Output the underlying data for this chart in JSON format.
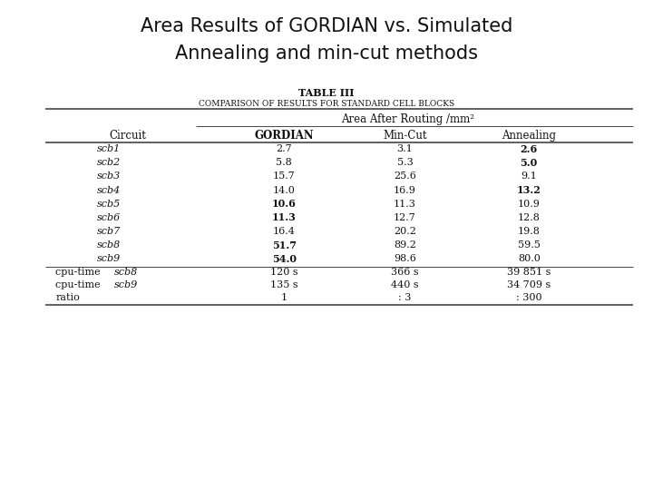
{
  "title_line1": "Area Results of GORDIAN vs. Simulated",
  "title_line2": "Annealing and min-cut methods",
  "table_title": "TABLE III",
  "table_subtitle": "Comparison of Results for Standard Cell Blocks",
  "subheader": "Area After Routing /mm²",
  "col_headers": [
    "Circuit",
    "GORDIAN",
    "Min-Cut",
    "Annealing"
  ],
  "data_rows": [
    [
      "scb1",
      "2.7",
      "3.1",
      "2.6"
    ],
    [
      "scb2",
      "5.8",
      "5.3",
      "5.0"
    ],
    [
      "scb3",
      "15.7",
      "25.6",
      "9.1"
    ],
    [
      "scb4",
      "14.0",
      "16.9",
      "13.2"
    ],
    [
      "scb5",
      "10.6",
      "11.3",
      "10.9"
    ],
    [
      "scb6",
      "11.3",
      "12.7",
      "12.8"
    ],
    [
      "scb7",
      "16.4",
      "20.2",
      "19.8"
    ],
    [
      "scb8",
      "51.7",
      "89.2",
      "59.5"
    ],
    [
      "scb9",
      "54.0",
      "98.6",
      "80.0"
    ]
  ],
  "bold_gordian": [
    "scb5",
    "scb6",
    "scb8",
    "scb9"
  ],
  "bold_annealing": [
    "scb1",
    "scb2",
    "scb4"
  ],
  "footer_rows": [
    [
      "cpu-time scb8",
      "120 s",
      "366 s",
      "39 851 s"
    ],
    [
      "cpu-time scb9",
      "135 s",
      "440 s",
      "34 709 s"
    ],
    [
      "ratio",
      "1",
      ": 3",
      ": 300"
    ]
  ],
  "bg_color": "#ffffff",
  "title_fontsize": 15,
  "table_title_fontsize": 8,
  "table_subtitle_fontsize": 7,
  "data_fontsize": 8,
  "col_header_fontsize": 8.5,
  "subheader_fontsize": 8.5
}
